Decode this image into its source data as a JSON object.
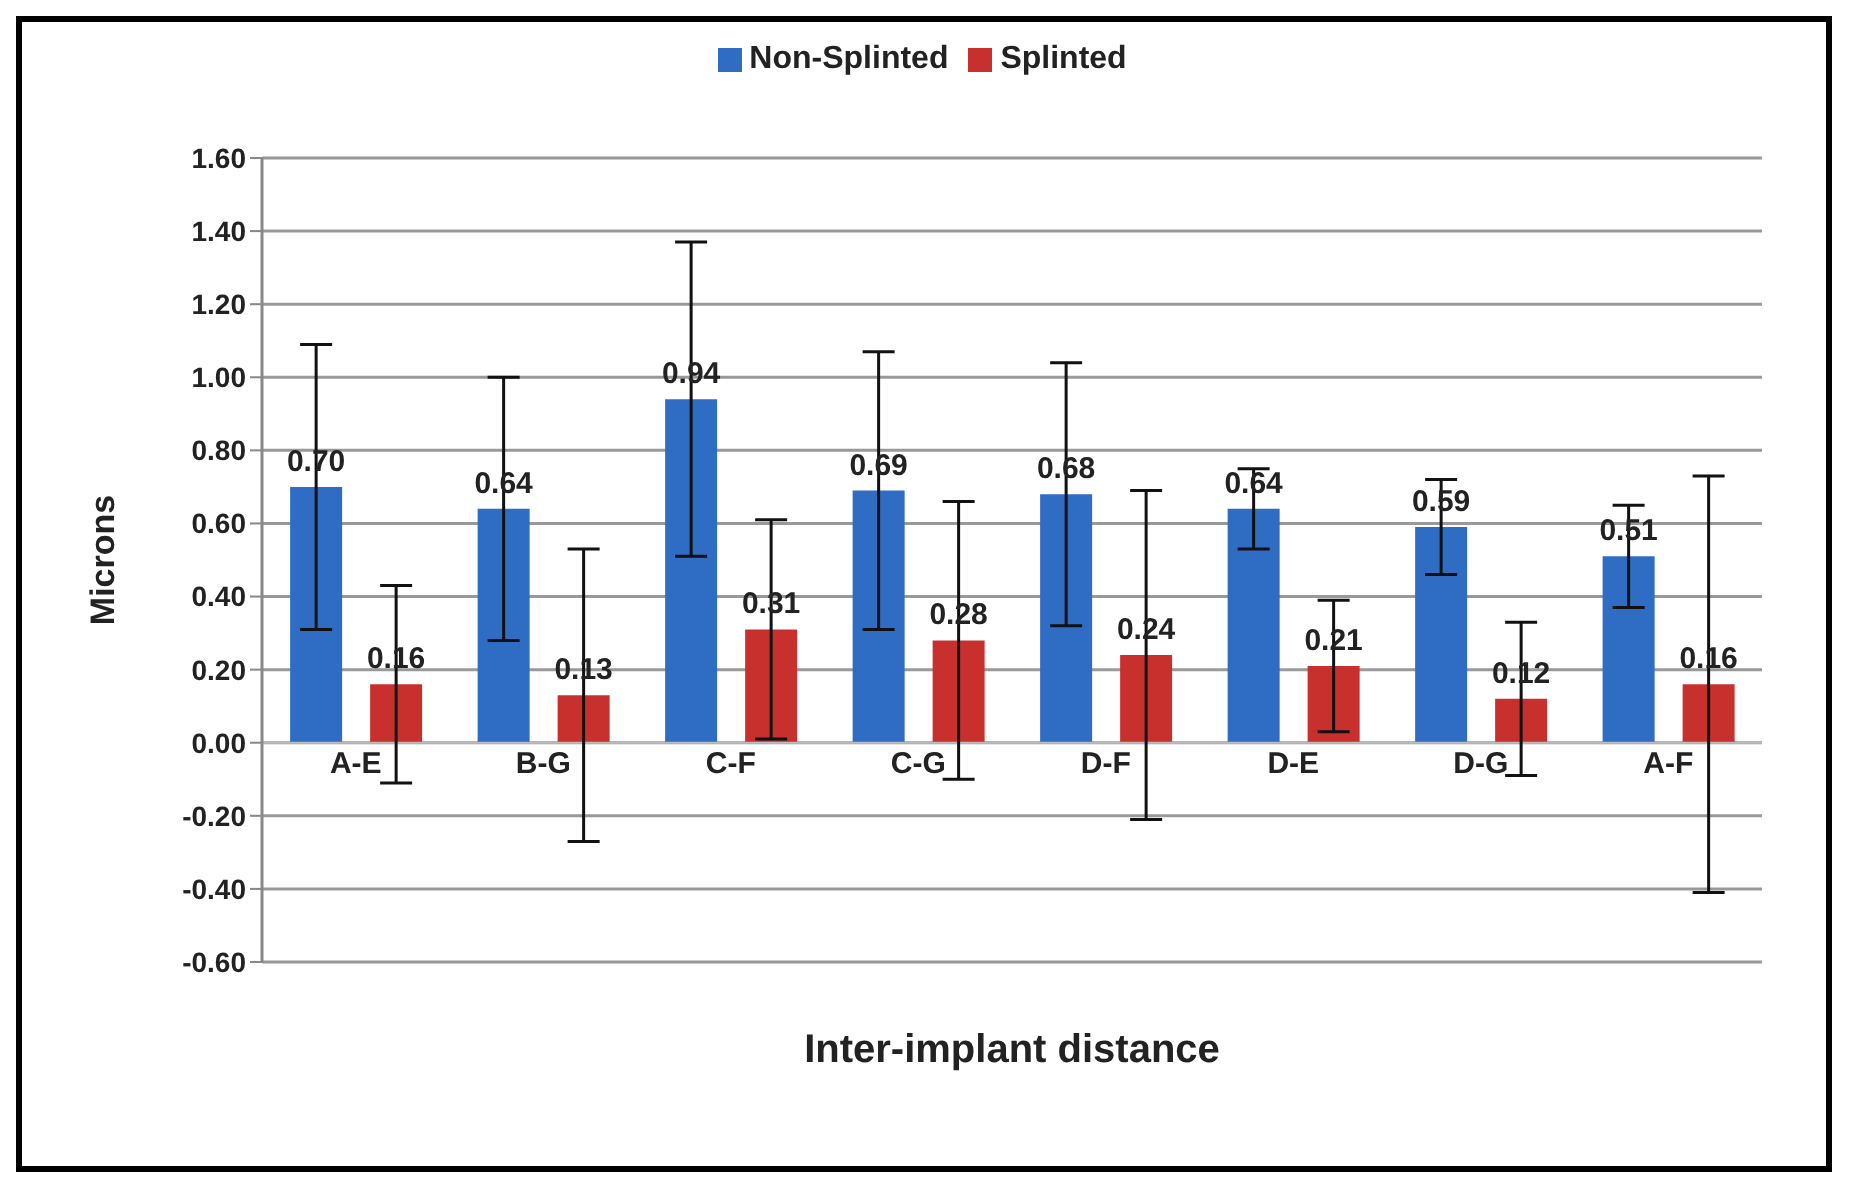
{
  "chart_data": {
    "type": "bar",
    "xlabel": "Inter-implant distance",
    "ylabel": "Microns",
    "categories": [
      "A-E",
      "B-G",
      "C-F",
      "C-G",
      "D-F",
      "D-E",
      "D-G",
      "A-F"
    ],
    "series": [
      {
        "name": "Non-Splinted",
        "color": "#2f6cc4",
        "values": [
          0.7,
          0.64,
          0.94,
          0.69,
          0.68,
          0.64,
          0.59,
          0.51
        ],
        "errors": [
          0.39,
          0.36,
          0.43,
          0.38,
          0.36,
          0.11,
          0.13,
          0.14
        ],
        "value_labels": [
          "0.70",
          "0.64",
          "0.94",
          "0.69",
          "0.68",
          "0.64",
          "0.59",
          "0.51"
        ]
      },
      {
        "name": "Splinted",
        "color": "#c8302e",
        "values": [
          0.16,
          0.13,
          0.31,
          0.28,
          0.24,
          0.21,
          0.12,
          0.16
        ],
        "errors": [
          0.27,
          0.4,
          0.3,
          0.38,
          0.45,
          0.18,
          0.21,
          0.57
        ],
        "value_labels": [
          "0.16",
          "0.13",
          "0.31",
          "0.28",
          "0.24",
          "0.21",
          "0.12",
          "0.16"
        ]
      }
    ],
    "ylim": [
      -0.6,
      1.6
    ],
    "yticks": [
      {
        "value": -0.6,
        "label": "-0.60"
      },
      {
        "value": -0.4,
        "label": "-0.40"
      },
      {
        "value": -0.2,
        "label": "-0.20"
      },
      {
        "value": 0,
        "label": "0.00"
      },
      {
        "value": 0.2,
        "label": "0.20"
      },
      {
        "value": 0.4,
        "label": "0.40"
      },
      {
        "value": 0.6,
        "label": "0.60"
      },
      {
        "value": 0.8,
        "label": "0.80"
      },
      {
        "value": 1.0,
        "label": "1.00"
      },
      {
        "value": 1.2,
        "label": "1.20"
      },
      {
        "value": 1.4,
        "label": "1.40"
      },
      {
        "value": 1.6,
        "label": "1.60"
      }
    ],
    "grid": "y",
    "legend": "top"
  }
}
